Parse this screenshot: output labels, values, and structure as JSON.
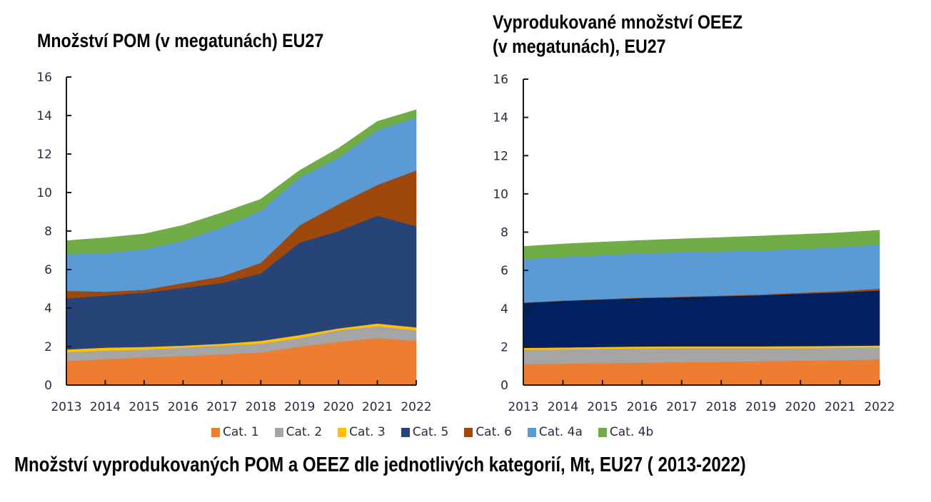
{
  "caption": "Množství vyprodukovaných POM a OEEZ dle jednotlivých kategorií, Mt, EU27 ( 2013-2022)",
  "legend": [
    {
      "name": "Cat. 1",
      "color": "#ED7D31"
    },
    {
      "name": "Cat. 2",
      "color": "#A5A5A5"
    },
    {
      "name": "Cat. 3",
      "color": "#FFC000"
    },
    {
      "name": "Cat. 5",
      "color": "#264478"
    },
    {
      "name": "Cat. 6",
      "color": "#9E480E"
    },
    {
      "name": "Cat. 4a",
      "color": "#5B9BD5"
    },
    {
      "name": "Cat. 4b",
      "color": "#70AD47"
    }
  ],
  "chart_data": [
    {
      "type": "area",
      "stacked": true,
      "title": "Množství POM (v megatunách) EU27",
      "xlabel": "",
      "ylabel": "",
      "x": [
        "2013",
        "2014",
        "2015",
        "2016",
        "2017",
        "2018",
        "2019",
        "2020",
        "2021",
        "2022"
      ],
      "ylim": [
        0,
        16
      ],
      "yticks": [
        "0",
        "2",
        "4",
        "6",
        "8",
        "10",
        "12",
        "14",
        "16"
      ],
      "grid": false,
      "legend_position": "bottom",
      "series": [
        {
          "name": "Cat. 1",
          "color": "#ED7D31",
          "values": [
            1.25,
            1.35,
            1.45,
            1.5,
            1.6,
            1.7,
            2.0,
            2.25,
            2.45,
            2.3
          ]
        },
        {
          "name": "Cat. 2",
          "color": "#A5A5A5",
          "values": [
            0.45,
            0.45,
            0.4,
            0.45,
            0.45,
            0.45,
            0.45,
            0.6,
            0.6,
            0.55
          ]
        },
        {
          "name": "Cat. 3",
          "color": "#FFC000",
          "values": [
            0.15,
            0.15,
            0.13,
            0.1,
            0.1,
            0.15,
            0.15,
            0.1,
            0.15,
            0.15
          ]
        },
        {
          "name": "Cat. 5",
          "color": "#264478",
          "values": [
            2.65,
            2.7,
            2.82,
            3.0,
            3.15,
            3.5,
            4.8,
            5.05,
            5.6,
            5.25
          ]
        },
        {
          "name": "Cat. 6",
          "color": "#9E480E",
          "values": [
            0.4,
            0.2,
            0.15,
            0.25,
            0.35,
            0.55,
            0.9,
            1.4,
            1.6,
            2.9
          ]
        },
        {
          "name": "Cat. 4a",
          "color": "#5B9BD5",
          "values": [
            1.9,
            2.0,
            2.1,
            2.2,
            2.55,
            2.7,
            2.5,
            2.4,
            2.85,
            2.75
          ]
        },
        {
          "name": "Cat. 4b",
          "color": "#70AD47",
          "values": [
            0.7,
            0.8,
            0.8,
            0.8,
            0.75,
            0.6,
            0.35,
            0.5,
            0.45,
            0.4
          ]
        }
      ]
    },
    {
      "type": "area",
      "stacked": true,
      "title": "Vyprodukované množství OEEZ (v megatunách), EU27",
      "title_lines": [
        "Vyprodukované množství OEEZ",
        "(v megatunách), EU27"
      ],
      "xlabel": "",
      "ylabel": "",
      "x": [
        "2013",
        "2014",
        "2015",
        "2016",
        "2017",
        "2018",
        "2019",
        "2020",
        "2021",
        "2022"
      ],
      "ylim": [
        0,
        16
      ],
      "yticks": [
        "0",
        "2",
        "4",
        "6",
        "8",
        "10",
        "12",
        "14",
        "16"
      ],
      "grid": false,
      "legend_position": "bottom",
      "series": [
        {
          "name": "Cat. 1",
          "color": "#ED7D31",
          "values": [
            1.1,
            1.12,
            1.15,
            1.18,
            1.2,
            1.22,
            1.25,
            1.28,
            1.3,
            1.35
          ]
        },
        {
          "name": "Cat. 2",
          "color": "#A5A5A5",
          "values": [
            0.75,
            0.75,
            0.75,
            0.74,
            0.73,
            0.71,
            0.68,
            0.65,
            0.65,
            0.62
          ]
        },
        {
          "name": "Cat. 3",
          "color": "#FFC000",
          "values": [
            0.1,
            0.1,
            0.1,
            0.1,
            0.1,
            0.1,
            0.1,
            0.11,
            0.1,
            0.1
          ]
        },
        {
          "name": "Cat. 5",
          "color": "#002060",
          "values": [
            2.35,
            2.43,
            2.48,
            2.53,
            2.57,
            2.62,
            2.67,
            2.74,
            2.8,
            2.88
          ]
        },
        {
          "name": "Cat. 6",
          "color": "#9E480E",
          "values": [
            0.02,
            0.02,
            0.02,
            0.03,
            0.03,
            0.03,
            0.04,
            0.05,
            0.07,
            0.1
          ]
        },
        {
          "name": "Cat. 4a",
          "color": "#5B9BD5",
          "values": [
            2.28,
            2.28,
            2.3,
            2.32,
            2.32,
            2.32,
            2.31,
            2.29,
            2.3,
            2.3
          ]
        },
        {
          "name": "Cat. 4b",
          "color": "#70AD47",
          "values": [
            0.65,
            0.68,
            0.68,
            0.67,
            0.7,
            0.72,
            0.75,
            0.76,
            0.75,
            0.75
          ]
        }
      ]
    }
  ]
}
